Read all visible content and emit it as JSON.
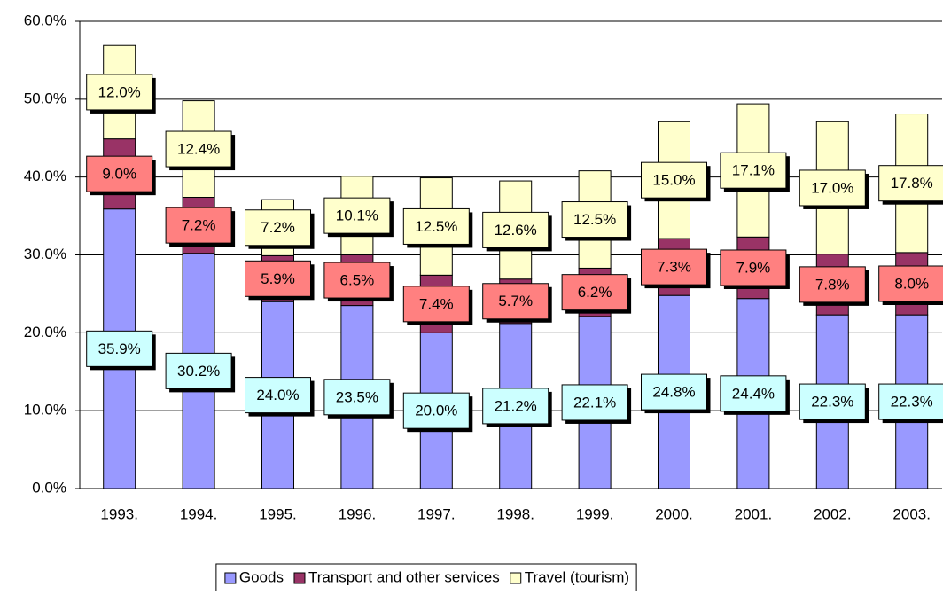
{
  "chart_data": {
    "type": "bar",
    "stacked": true,
    "categories": [
      "1993.",
      "1994.",
      "1995.",
      "1996.",
      "1997.",
      "1998.",
      "1999.",
      "2000.",
      "2001.",
      "2002.",
      "2003."
    ],
    "series": [
      {
        "name": "Goods",
        "color": "#9999ff",
        "label_color": "#ccffff",
        "values": [
          35.9,
          30.2,
          24.0,
          23.5,
          20.0,
          21.2,
          22.1,
          24.8,
          24.4,
          22.3,
          22.3
        ],
        "value_labels": [
          "35.9%",
          "30.2%",
          "24.0%",
          "23.5%",
          "20.0%",
          "21.2%",
          "22.1%",
          "24.8%",
          "24.4%",
          "22.3%",
          "22.3%"
        ]
      },
      {
        "name": "Transport and other services",
        "color": "#993366",
        "label_color": "#ff8080",
        "values": [
          9.0,
          7.2,
          5.9,
          6.5,
          7.4,
          5.7,
          6.2,
          7.3,
          7.9,
          7.8,
          8.0
        ],
        "value_labels": [
          "9.0%",
          "7.2%",
          "5.9%",
          "6.5%",
          "7.4%",
          "5.7%",
          "6.2%",
          "7.3%",
          "7.9%",
          "7.8%",
          "8.0%"
        ]
      },
      {
        "name": "Travel (tourism)",
        "color": "#ffffcc",
        "label_color": "#ffffcc",
        "values": [
          12.0,
          12.4,
          7.2,
          10.1,
          12.5,
          12.6,
          12.5,
          15.0,
          17.1,
          17.0,
          17.8
        ],
        "value_labels": [
          "12.0%",
          "12.4%",
          "7.2%",
          "10.1%",
          "12.5%",
          "12.6%",
          "12.5%",
          "15.0%",
          "17.1%",
          "17.0%",
          "17.8%"
        ]
      }
    ],
    "ylim": [
      0,
      60
    ],
    "yticks": [
      {
        "value": 0,
        "label": "0.0%"
      },
      {
        "value": 10,
        "label": "10.0%"
      },
      {
        "value": 20,
        "label": "20.0%"
      },
      {
        "value": 30,
        "label": "30.0%"
      },
      {
        "value": 40,
        "label": "40.0%"
      },
      {
        "value": 50,
        "label": "50.0%"
      },
      {
        "value": 60,
        "label": "60.0%"
      }
    ],
    "grid": true,
    "legend": "bottom"
  }
}
